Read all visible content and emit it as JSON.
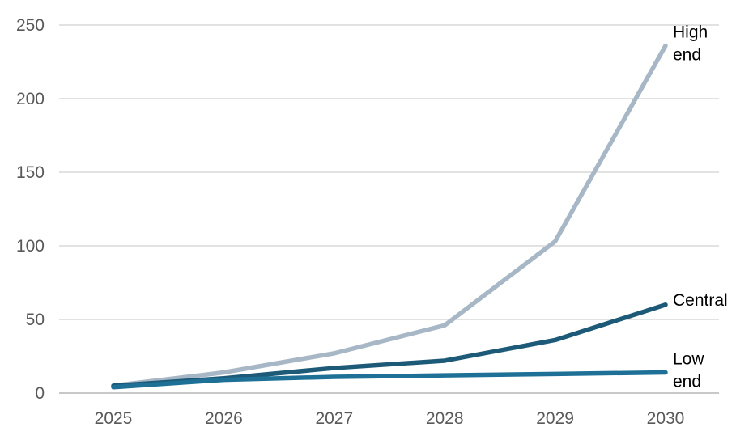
{
  "chart_data": {
    "type": "line",
    "title": "",
    "xlabel": "",
    "ylabel": "",
    "x": [
      2025,
      2026,
      2027,
      2028,
      2029,
      2030
    ],
    "series": [
      {
        "name": "High end",
        "label_lines": [
          "High",
          "end"
        ],
        "color": "#a8b7c6",
        "values": [
          5,
          14,
          27,
          46,
          103,
          236
        ]
      },
      {
        "name": "Central",
        "label_lines": [
          "Central"
        ],
        "color": "#1d5a78",
        "values": [
          5,
          10,
          17,
          22,
          36,
          60
        ]
      },
      {
        "name": "Low end",
        "label_lines": [
          "Low",
          "end"
        ],
        "color": "#1f7096",
        "values": [
          4,
          9,
          11,
          12,
          13,
          14
        ]
      }
    ],
    "ylim": [
      0,
      250
    ],
    "yticks": [
      0,
      50,
      100,
      150,
      200,
      250
    ],
    "grid": true,
    "legend_position": "labels-at-line-ends",
    "background_color": "#ffffff",
    "grid_color": "#d9d9d9",
    "axis_line_color": "#c0c0c0",
    "tick_label_color": "#595959",
    "series_label_color": "#000000"
  }
}
